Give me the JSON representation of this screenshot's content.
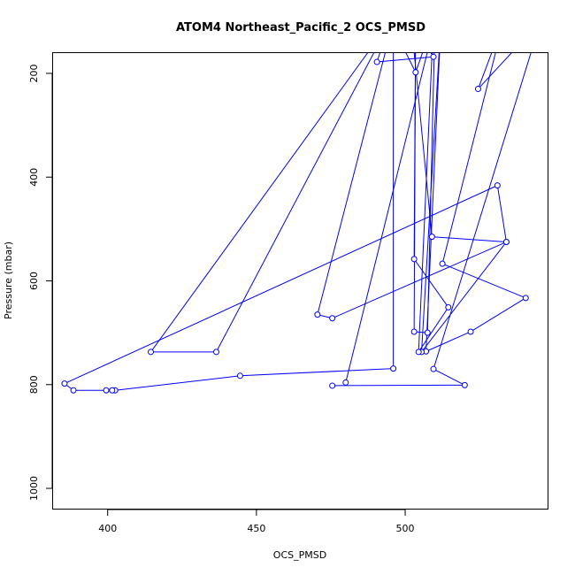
{
  "chart_data": {
    "type": "line",
    "title": "ATOM4 Northeast_Pacific_2 OCS_PMSD",
    "xlabel": "OCS_PMSD",
    "ylabel": "Pressure (mbar)",
    "xlim": [
      381.5,
      548
    ],
    "ylim": [
      1040,
      160
    ],
    "y_reversed": true,
    "grid": false,
    "markers": "open circles",
    "color": "#0000ff",
    "xticks": [
      400,
      450,
      500
    ],
    "yticks": [
      200,
      400,
      600,
      800,
      1000
    ],
    "xtick_labels": [
      "400",
      "450",
      "500"
    ],
    "ytick_labels": [
      "200",
      "400",
      "600",
      "800",
      "1000"
    ],
    "series": [
      {
        "points": [
          [
            475.5,
            802
          ],
          [
            520.0,
            801
          ],
          [
            509.5,
            770
          ],
          [
            545.5,
            100
          ],
          [
            524.5,
            230
          ],
          [
            533.0,
            100
          ],
          [
            512.5,
            567
          ],
          [
            540.5,
            633
          ],
          [
            522.0,
            698
          ],
          [
            507.0,
            736
          ],
          [
            512.0,
            100
          ],
          [
            505.5,
            737
          ],
          [
            534.0,
            525
          ],
          [
            475.5,
            672
          ],
          [
            470.5,
            665
          ],
          [
            496.0,
            100
          ],
          [
            496.0,
            769
          ],
          [
            444.5,
            783
          ],
          [
            402.5,
            811
          ],
          [
            401.5,
            811
          ],
          [
            399.5,
            811
          ],
          [
            388.5,
            811
          ],
          [
            385.5,
            798
          ],
          [
            531.0,
            416
          ],
          [
            534.0,
            525
          ],
          [
            509.0,
            515
          ],
          [
            502.0,
            100
          ],
          [
            509.5,
            168
          ],
          [
            490.5,
            178
          ],
          [
            495.0,
            100
          ],
          [
            436.5,
            737
          ],
          [
            414.5,
            737
          ],
          [
            495.0,
            100
          ],
          [
            503.5,
            198
          ],
          [
            509.5,
            100
          ],
          [
            504.5,
            737
          ],
          [
            514.5,
            651
          ],
          [
            503.0,
            558
          ],
          [
            503.5,
            100
          ],
          [
            503.0,
            698
          ],
          [
            507.5,
            700
          ],
          [
            510.0,
            100
          ],
          [
            510.0,
            100
          ],
          [
            480.0,
            796
          ]
        ]
      }
    ]
  }
}
